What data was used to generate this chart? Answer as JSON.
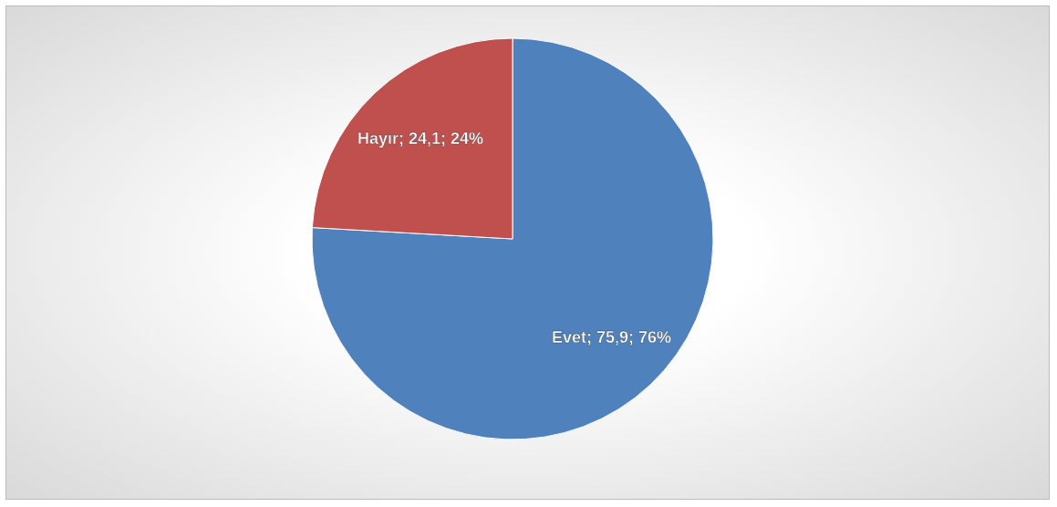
{
  "chart_data": {
    "type": "pie",
    "categories": [
      "Evet",
      "Hayır"
    ],
    "values": [
      75.9,
      24.1
    ],
    "colors": [
      "#4f81bd",
      "#c0504d"
    ],
    "value_labels": [
      "; 75,9; 76%",
      "; 24,1; 24%"
    ]
  }
}
